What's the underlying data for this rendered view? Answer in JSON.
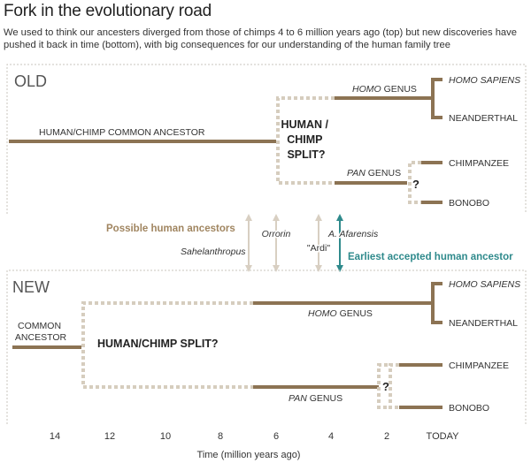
{
  "header": {
    "title": "Fork in the evolutionary road",
    "subtitle": "We used to think our ancesters diverged from those of chimps 4 to 6 million years ago (top) but new discoveries have pushed it back in time (bottom), with big consequences for our understanding of the human family tree"
  },
  "old_panel": {
    "label": "OLD",
    "common_ancestor": "HUMAN/CHIMP COMMON ANCESTOR",
    "split": [
      "HUMAN /",
      "CHIMP",
      "SPLIT?"
    ],
    "homo_genus": {
      "italic": "HOMO",
      "rest": " GENUS"
    },
    "pan_genus": {
      "italic": "PAN",
      "rest": " GENUS"
    },
    "homo_sapiens": "HOMO SAPIENS",
    "neanderthal": "NEANDERTHAL",
    "chimpanzee": "CHIMPANZEE",
    "bonobo": "BONOBO",
    "question": "?"
  },
  "middle": {
    "possible_ancestors": "Possible human ancestors",
    "orrorin": "Orrorin",
    "sahelanthropus": "Sahelanthropus",
    "ardi": "\"Ardi\"",
    "afarensis": "A. Afarensis",
    "earliest_accepted": "Earliest accepted human ancestor"
  },
  "new_panel": {
    "label": "NEW",
    "common_ancestor": [
      "COMMON",
      "ANCESTOR"
    ],
    "split": "HUMAN/CHIMP SPLIT?",
    "homo_genus": {
      "italic": "HOMO",
      "rest": " GENUS"
    },
    "pan_genus": {
      "italic": "PAN",
      "rest": " GENUS"
    },
    "homo_sapiens": "HOMO SAPIENS",
    "neanderthal": "NEANDERTHAL",
    "chimpanzee": "CHIMPANZEE",
    "bonobo": "BONOBO",
    "question": "?"
  },
  "axis": {
    "ticks": [
      "14",
      "12",
      "10",
      "8",
      "6",
      "4",
      "2",
      "TODAY"
    ],
    "label": "Time (million years ago)"
  },
  "colors": {
    "lineage": "#8c7353",
    "dotted": "#d6cdbe",
    "box": "#c9c4bc",
    "teal": "#2f8a8c",
    "possible": "#a08560",
    "arrow": "#d8cfc2"
  }
}
